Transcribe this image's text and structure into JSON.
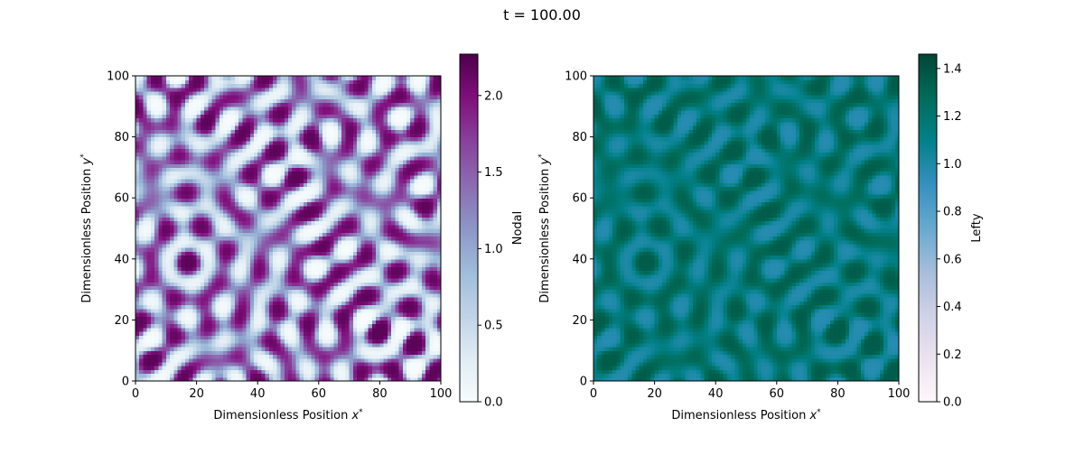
{
  "figure": {
    "suptitle": "t = 100.00"
  },
  "chart_data": [
    {
      "type": "heatmap",
      "title": "",
      "xlabel": "Dimensionless Position x*",
      "xlabel_text": "Dimensionless Position ",
      "xlabel_var": "x",
      "ylabel": "Dimensionless Position y*",
      "ylabel_text": "Dimensionless Position ",
      "ylabel_var": "y",
      "xlim": [
        0,
        100
      ],
      "ylim": [
        0,
        100
      ],
      "xticks": [
        "0",
        "20",
        "40",
        "60",
        "80",
        "100"
      ],
      "yticks": [
        "0",
        "20",
        "40",
        "60",
        "80",
        "100"
      ],
      "colorbar": {
        "label": "Nodal",
        "range": [
          0.0,
          2.27
        ],
        "ticks": [
          "0.0",
          "0.5",
          "1.0",
          "1.5",
          "2.0"
        ],
        "tick_values": [
          0.0,
          0.5,
          1.0,
          1.5,
          2.0
        ],
        "colormap": "BuPu",
        "colors": [
          "#f7fcfd",
          "#e0ecf4",
          "#bfd3e6",
          "#9ebcda",
          "#8c96c6",
          "#8c6bb1",
          "#88419d",
          "#810f7c",
          "#4d004b"
        ]
      },
      "pattern": "turing labyrinth stripes, period ~11 units"
    },
    {
      "type": "heatmap",
      "title": "",
      "xlabel": "Dimensionless Position x*",
      "xlabel_text": "Dimensionless Position ",
      "xlabel_var": "x",
      "ylabel": "Dimensionless Position y*",
      "ylabel_text": "Dimensionless Position ",
      "ylabel_var": "y",
      "xlim": [
        0,
        100
      ],
      "ylim": [
        0,
        100
      ],
      "xticks": [
        "0",
        "20",
        "40",
        "60",
        "80",
        "100"
      ],
      "yticks": [
        "0",
        "20",
        "40",
        "60",
        "80",
        "100"
      ],
      "colorbar": {
        "label": "Lefty",
        "range": [
          0.0,
          1.46
        ],
        "ticks": [
          "0.0",
          "0.2",
          "0.4",
          "0.6",
          "0.8",
          "1.0",
          "1.2",
          "1.4"
        ],
        "tick_values": [
          0.0,
          0.2,
          0.4,
          0.6,
          0.8,
          1.0,
          1.2,
          1.4
        ],
        "colormap": "PuBuGn",
        "colors": [
          "#fff7fb",
          "#ece2f0",
          "#d0d1e6",
          "#a6bddb",
          "#67a9cf",
          "#3690c0",
          "#02818a",
          "#016c59",
          "#014636"
        ]
      },
      "pattern": "same labyrinth pattern, values ~1.0-1.46"
    }
  ]
}
